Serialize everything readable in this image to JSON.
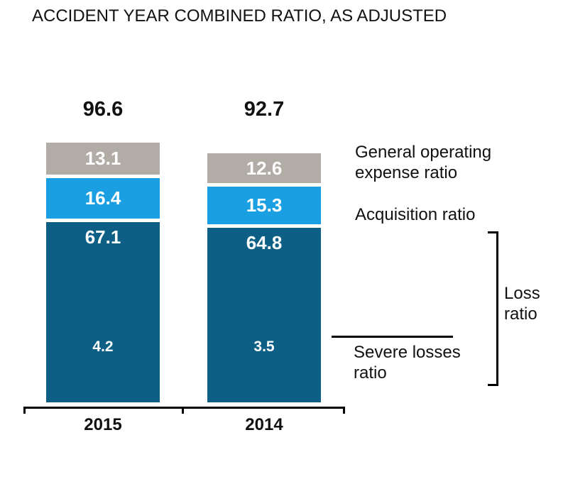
{
  "chart_data": {
    "type": "bar",
    "stacked": true,
    "title": "ACCIDENT YEAR COMBINED RATIO, AS ADJUSTED",
    "categories": [
      "2015",
      "2014"
    ],
    "totals": [
      96.6,
      92.7
    ],
    "series": [
      {
        "name": "Loss ratio",
        "values": [
          67.1,
          64.8
        ],
        "color": "#0d5f85"
      },
      {
        "name": "Acquisition ratio",
        "values": [
          16.4,
          15.3
        ],
        "color": "#1aa0e2"
      },
      {
        "name": "General operating expense ratio",
        "values": [
          13.1,
          12.6
        ],
        "color": "#b2aca7"
      }
    ],
    "severe_losses": {
      "name": "Severe losses ratio",
      "values": [
        4.2,
        3.5
      ]
    },
    "legend_position": "right",
    "grid": false,
    "annotations": {
      "general_operating": {
        "line1": "General operating",
        "line2": "expense ratio"
      },
      "acquisition": {
        "line1": "Acquisition ratio"
      },
      "loss": {
        "line1": "Loss",
        "line2": "ratio"
      },
      "severe": {
        "line1": "Severe losses",
        "line2": "ratio"
      }
    },
    "colors": {
      "loss_ratio": "#0d5f85",
      "acquisition_ratio": "#1aa0e2",
      "general_operating": "#b2aca7",
      "value_text": "#ffffff",
      "axis": "#000000"
    }
  }
}
